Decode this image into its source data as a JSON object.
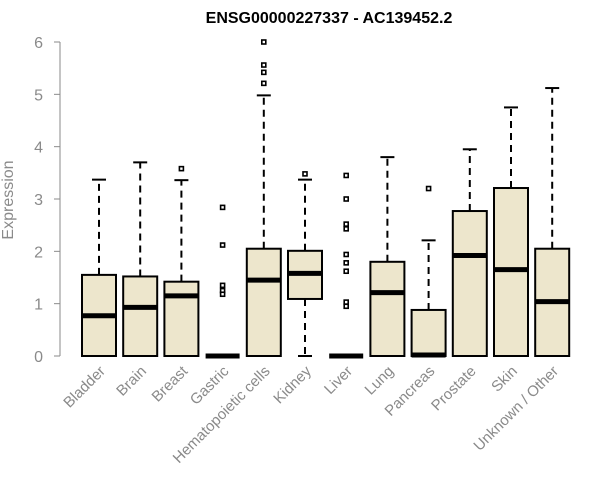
{
  "chart_data": {
    "type": "box",
    "title": "ENSG00000227337 - AC139452.2",
    "xlabel": "",
    "ylabel": "Expression",
    "ylim": [
      0,
      6
    ],
    "yticks": [
      0,
      1,
      2,
      3,
      4,
      5,
      6
    ],
    "grid": false,
    "box_color": "#ede6cc",
    "categories": [
      "Bladder",
      "Brain",
      "Breast",
      "Gastric",
      "Hematopoietic cells",
      "Kidney",
      "Liver",
      "Lung",
      "Pancreas",
      "Prostate",
      "Skin",
      "Unknown / Other"
    ],
    "boxes": [
      {
        "q1": 0.0,
        "median": 0.77,
        "q3": 1.55,
        "whisker_low": 0.0,
        "whisker_high": 3.37,
        "outliers": []
      },
      {
        "q1": 0.0,
        "median": 0.93,
        "q3": 1.52,
        "whisker_low": 0.0,
        "whisker_high": 3.7,
        "outliers": []
      },
      {
        "q1": 0.0,
        "median": 1.15,
        "q3": 1.42,
        "whisker_low": 0.0,
        "whisker_high": 3.36,
        "outliers": [
          3.58
        ]
      },
      {
        "q1": 0.0,
        "median": 0.0,
        "q3": 0.0,
        "whisker_low": 0.0,
        "whisker_high": 0.0,
        "outliers": [
          2.84,
          2.12,
          1.35,
          1.25,
          1.18
        ]
      },
      {
        "q1": 0.0,
        "median": 1.45,
        "q3": 2.05,
        "whisker_low": 0.0,
        "whisker_high": 4.98,
        "outliers": [
          5.21,
          5.42,
          5.56,
          6.0
        ]
      },
      {
        "q1": 1.09,
        "median": 1.58,
        "q3": 2.01,
        "whisker_low": 0.0,
        "whisker_high": 3.37,
        "outliers": [
          3.48
        ]
      },
      {
        "q1": 0.0,
        "median": 0.0,
        "q3": 0.0,
        "whisker_low": 0.0,
        "whisker_high": 0.0,
        "outliers": [
          3.45,
          3.0,
          2.52,
          2.43,
          1.94,
          1.78,
          1.62,
          1.03,
          0.95
        ]
      },
      {
        "q1": 0.0,
        "median": 1.21,
        "q3": 1.8,
        "whisker_low": 0.0,
        "whisker_high": 3.8,
        "outliers": []
      },
      {
        "q1": 0.0,
        "median": 0.02,
        "q3": 0.88,
        "whisker_low": 0.0,
        "whisker_high": 2.21,
        "outliers": [
          3.2
        ]
      },
      {
        "q1": 0.0,
        "median": 1.92,
        "q3": 2.77,
        "whisker_low": 0.0,
        "whisker_high": 3.95,
        "outliers": []
      },
      {
        "q1": 0.0,
        "median": 1.65,
        "q3": 3.21,
        "whisker_low": 0.0,
        "whisker_high": 4.75,
        "outliers": []
      },
      {
        "q1": 0.0,
        "median": 1.04,
        "q3": 2.05,
        "whisker_low": 0.0,
        "whisker_high": 5.12,
        "outliers": []
      }
    ]
  }
}
